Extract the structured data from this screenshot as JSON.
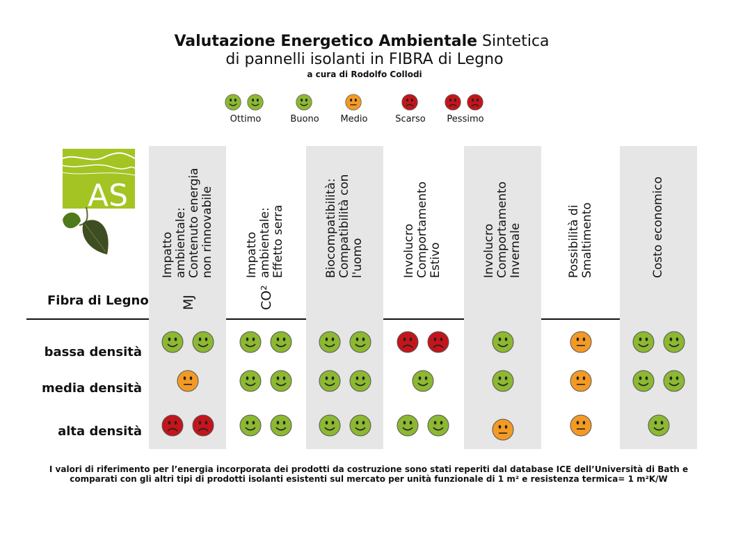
{
  "header": {
    "title_bold": "Valutazione Energetico Ambientale",
    "title_rest": " Sintetica",
    "title_line2": "di pannelli isolanti in FIBRA di Legno",
    "subtitle": "a cura di Rodolfo Collodi"
  },
  "legend": [
    {
      "label": "Ottimo",
      "faces": [
        "green",
        "green"
      ]
    },
    {
      "label": "Buono",
      "faces": [
        "green"
      ]
    },
    {
      "label": "Medio",
      "faces": [
        "orange"
      ]
    },
    {
      "label": "Scarso",
      "faces": [
        "red"
      ]
    },
    {
      "label": "Pessimo",
      "faces": [
        "red",
        "red"
      ]
    }
  ],
  "colors": {
    "green": "#8cb832",
    "orange": "#f39a25",
    "red": "#c3151b",
    "column_bg": "#e6e6e6"
  },
  "logo": {
    "text": "AS"
  },
  "table": {
    "row_header": "Fibra di Legno",
    "columns": [
      {
        "lines": [
          "Impatto",
          "ambientale:",
          "Contenuto energia",
          "non rinnovabile"
        ],
        "unit": "MJ"
      },
      {
        "lines": [
          "Impatto",
          "ambientale:",
          "Effetto serra"
        ],
        "unit": "CO²"
      },
      {
        "lines": [
          "Biocompatibilità:",
          "Compatibilità con",
          "l'uomo"
        ],
        "unit": ""
      },
      {
        "lines": [
          "Involucro",
          "Comportamento",
          "Estivo"
        ],
        "unit": ""
      },
      {
        "lines": [
          "Involucro",
          "Comportamento",
          "Invernale"
        ],
        "unit": ""
      },
      {
        "lines": [
          "Possibilità di",
          "Smaltimento"
        ],
        "unit": ""
      },
      {
        "lines": [
          "Costo economico"
        ],
        "unit": ""
      }
    ],
    "rows": [
      {
        "label": "bassa densità",
        "ratings": [
          [
            "green",
            "green"
          ],
          [
            "green",
            "green"
          ],
          [
            "green",
            "green"
          ],
          [
            "red",
            "red"
          ],
          [
            "green"
          ],
          [
            "orange"
          ],
          [
            "green",
            "green"
          ]
        ]
      },
      {
        "label": "media densità",
        "ratings": [
          [
            "orange"
          ],
          [
            "green",
            "green"
          ],
          [
            "green",
            "green"
          ],
          [
            "green"
          ],
          [
            "green"
          ],
          [
            "orange"
          ],
          [
            "green",
            "green"
          ]
        ]
      },
      {
        "label": "alta densità",
        "ratings": [
          [
            "red",
            "red"
          ],
          [
            "green",
            "green"
          ],
          [
            "green",
            "green"
          ],
          [
            "green",
            "green"
          ],
          [
            "orange"
          ],
          [
            "orange"
          ],
          [
            "green"
          ]
        ]
      }
    ]
  },
  "footnote": {
    "line1": "I valori di riferimento per l’energia incorporata dei prodotti da costruzione sono stati reperiti dal database ICE dell’Università di Bath e",
    "line2": "comparati con gli altri tipi di prodotti isolanti esistenti sul mercato per unità funzionale di 1 m² e resistenza termica= 1 m²K/W"
  }
}
